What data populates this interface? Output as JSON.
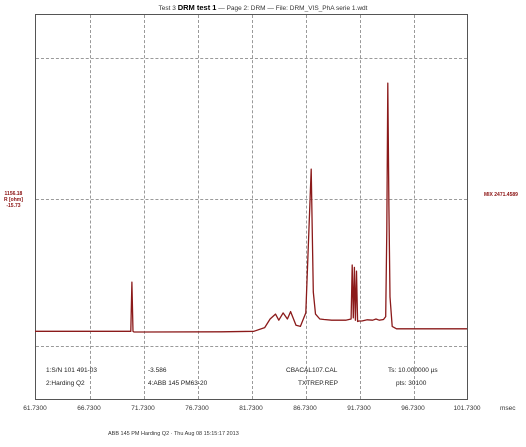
{
  "header": {
    "title_prefix": "Test 3",
    "title_bold": "DRM test 1",
    "title_rest": "— Page 2: DRM — File: DRM_VIS_PhA serie 1.wdt"
  },
  "y_axis": {
    "top": "1156.18",
    "label": "R [ohm]",
    "bottom": "-15.73"
  },
  "right_label": "MIX 2471.4589",
  "info": {
    "line1_col1": "1:S/N 101 491-03",
    "line1_col2": "-3.586",
    "line1_col3": "CBACAL107.CAL",
    "line1_col4": "Ts: 10.000000 µs",
    "line2_col1": "2:Harding Q2",
    "line2_col2": "4:ABB 145 PM63-20",
    "line2_col3": "TXTREP.REP",
    "line2_col4": "pts: 30100"
  },
  "x_ticks": [
    "61.7300",
    "66.7300",
    "71.7300",
    "76.7300",
    "81.7300",
    "86.7300",
    "91.7300",
    "96.7300",
    "101.7300"
  ],
  "x_unit": "msec",
  "footer": "ABB 145 PM Harding Q2 · Thu Aug 08 15:15:17 2013",
  "chart_data": {
    "type": "line",
    "title": "Test 3 DRM test 1 — Page 2: DRM — File: DRM_VIS_PhA serie 1.wdt",
    "xlabel": "msec",
    "ylabel": "R [ohm]",
    "xlim": [
      61.73,
      101.73
    ],
    "ylim": [
      -15.73,
      1156.18
    ],
    "grid": true,
    "series": [
      {
        "color": "#8b1a1a",
        "x": [
          61.73,
          69.0,
          70.6,
          70.7,
          70.8,
          70.9,
          72.0,
          79.0,
          82.0,
          83.0,
          83.5,
          84.0,
          84.3,
          84.7,
          85.1,
          85.4,
          85.9,
          86.3,
          86.8,
          87.3,
          87.5,
          87.7,
          88.1,
          88.5,
          89.2,
          90.5,
          91.0,
          91.1,
          91.2,
          91.3,
          91.4,
          91.5,
          91.6,
          91.7,
          92.0,
          92.5,
          93.0,
          93.3,
          93.6,
          94.0,
          94.2,
          94.3,
          94.4,
          94.5,
          94.6,
          94.8,
          95.2,
          101.73
        ],
        "y": [
          40,
          40,
          40,
          240,
          40,
          37,
          37,
          38,
          40,
          55,
          90,
          110,
          85,
          115,
          90,
          120,
          65,
          60,
          115,
          700,
          200,
          110,
          90,
          88,
          85,
          85,
          90,
          310,
          95,
          300,
          85,
          285,
          80,
          82,
          82,
          87,
          85,
          90,
          85,
          88,
          100,
          450,
          1050,
          550,
          180,
          60,
          50,
          50
        ]
      }
    ]
  }
}
